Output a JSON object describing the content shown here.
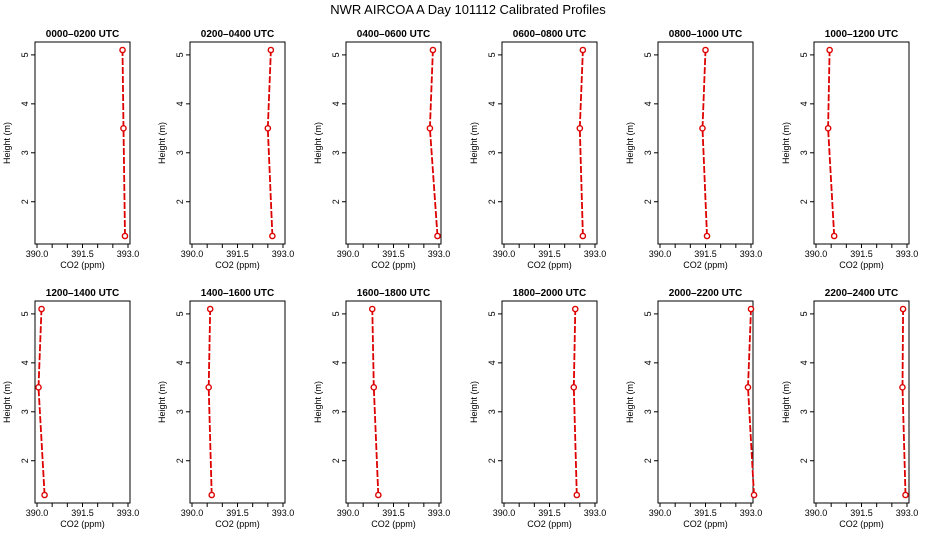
{
  "title": "NWR AIRCOA A  Day 101112  Calibrated Profiles",
  "colors": {
    "series": "#dd0000",
    "frame": "#000000"
  },
  "chart_data": [
    {
      "type": "line",
      "title": "0000–0200 UTC",
      "xlabel": "CO2 (ppm)",
      "ylabel": "Height (m)",
      "xlim": [
        390.0,
        393.0
      ],
      "ylim": [
        1.3,
        5.1
      ],
      "xticks": [
        "390.0",
        "391.5",
        "393.0"
      ],
      "yticks": [
        "2",
        "3",
        "4",
        "5"
      ],
      "x": [
        392.9,
        392.85,
        392.82
      ],
      "y": [
        1.3,
        3.5,
        5.1
      ]
    },
    {
      "type": "line",
      "title": "0200–0400 UTC",
      "xlabel": "CO2 (ppm)",
      "ylabel": "Height (m)",
      "xlim": [
        390.0,
        393.0
      ],
      "ylim": [
        1.3,
        5.1
      ],
      "xticks": [
        "390.0",
        "391.5",
        "393.0"
      ],
      "yticks": [
        "2",
        "3",
        "4",
        "5"
      ],
      "x": [
        392.65,
        392.5,
        392.6
      ],
      "y": [
        1.3,
        3.5,
        5.1
      ]
    },
    {
      "type": "line",
      "title": "0400–0600 UTC",
      "xlabel": "CO2 (ppm)",
      "ylabel": "Height (m)",
      "xlim": [
        390.0,
        393.0
      ],
      "ylim": [
        1.3,
        5.1
      ],
      "xticks": [
        "390.0",
        "391.5",
        "393.0"
      ],
      "yticks": [
        "2",
        "3",
        "4",
        "5"
      ],
      "x": [
        392.95,
        392.7,
        392.8
      ],
      "y": [
        1.3,
        3.5,
        5.1
      ]
    },
    {
      "type": "line",
      "title": "0600–0800 UTC",
      "xlabel": "CO2 (ppm)",
      "ylabel": "Height (m)",
      "xlim": [
        390.0,
        393.0
      ],
      "ylim": [
        1.3,
        5.1
      ],
      "xticks": [
        "390.0",
        "391.5",
        "393.0"
      ],
      "yticks": [
        "2",
        "3",
        "4",
        "5"
      ],
      "x": [
        392.6,
        392.5,
        392.6
      ],
      "y": [
        1.3,
        3.5,
        5.1
      ]
    },
    {
      "type": "line",
      "title": "0800–1000 UTC",
      "xlabel": "CO2 (ppm)",
      "ylabel": "Height (m)",
      "xlim": [
        390.0,
        393.0
      ],
      "ylim": [
        1.3,
        5.1
      ],
      "xticks": [
        "390.0",
        "391.5",
        "393.0"
      ],
      "yticks": [
        "2",
        "3",
        "4",
        "5"
      ],
      "x": [
        391.55,
        391.4,
        391.5
      ],
      "y": [
        1.3,
        3.5,
        5.1
      ]
    },
    {
      "type": "line",
      "title": "1000–1200 UTC",
      "xlabel": "CO2 (ppm)",
      "ylabel": "Height (m)",
      "xlim": [
        390.0,
        393.0
      ],
      "ylim": [
        1.3,
        5.1
      ],
      "xticks": [
        "390.0",
        "391.5",
        "393.0"
      ],
      "yticks": [
        "2",
        "3",
        "4",
        "5"
      ],
      "x": [
        390.6,
        390.4,
        390.45
      ],
      "y": [
        1.3,
        3.5,
        5.1
      ]
    },
    {
      "type": "line",
      "title": "1200–1400 UTC",
      "xlabel": "CO2 (ppm)",
      "ylabel": "Height (m)",
      "xlim": [
        390.0,
        393.0
      ],
      "ylim": [
        1.3,
        5.1
      ],
      "xticks": [
        "390.0",
        "391.5",
        "393.0"
      ],
      "yticks": [
        "2",
        "3",
        "4",
        "5"
      ],
      "x": [
        390.25,
        390.05,
        390.15
      ],
      "y": [
        1.3,
        3.5,
        5.1
      ]
    },
    {
      "type": "line",
      "title": "1400–1600 UTC",
      "xlabel": "CO2 (ppm)",
      "ylabel": "Height (m)",
      "xlim": [
        390.0,
        393.0
      ],
      "ylim": [
        1.3,
        5.1
      ],
      "xticks": [
        "390.0",
        "391.5",
        "393.0"
      ],
      "yticks": [
        "2",
        "3",
        "4",
        "5"
      ],
      "x": [
        390.65,
        390.55,
        390.6
      ],
      "y": [
        1.3,
        3.5,
        5.1
      ]
    },
    {
      "type": "line",
      "title": "1600–1800 UTC",
      "xlabel": "CO2 (ppm)",
      "ylabel": "Height (m)",
      "xlim": [
        390.0,
        393.0
      ],
      "ylim": [
        1.3,
        5.1
      ],
      "xticks": [
        "390.0",
        "391.5",
        "393.0"
      ],
      "yticks": [
        "2",
        "3",
        "4",
        "5"
      ],
      "x": [
        391.0,
        390.85,
        390.8
      ],
      "y": [
        1.3,
        3.5,
        5.1
      ]
    },
    {
      "type": "line",
      "title": "1800–2000 UTC",
      "xlabel": "CO2 (ppm)",
      "ylabel": "Height (m)",
      "xlim": [
        390.0,
        393.0
      ],
      "ylim": [
        1.3,
        5.1
      ],
      "xticks": [
        "390.0",
        "391.5",
        "393.0"
      ],
      "yticks": [
        "2",
        "3",
        "4",
        "5"
      ],
      "x": [
        392.4,
        392.3,
        392.35
      ],
      "y": [
        1.3,
        3.5,
        5.1
      ]
    },
    {
      "type": "line",
      "title": "2000–2200 UTC",
      "xlabel": "CO2 (ppm)",
      "ylabel": "Height (m)",
      "xlim": [
        390.0,
        393.0
      ],
      "ylim": [
        1.3,
        5.1
      ],
      "xticks": [
        "390.0",
        "391.5",
        "393.0"
      ],
      "yticks": [
        "2",
        "3",
        "4",
        "5"
      ],
      "x": [
        393.1,
        392.9,
        393.0
      ],
      "y": [
        1.3,
        3.5,
        5.1
      ]
    },
    {
      "type": "line",
      "title": "2200–2400 UTC",
      "xlabel": "CO2 (ppm)",
      "ylabel": "Height (m)",
      "xlim": [
        390.0,
        393.0
      ],
      "ylim": [
        1.3,
        5.1
      ],
      "xticks": [
        "390.0",
        "391.5",
        "393.0"
      ],
      "yticks": [
        "2",
        "3",
        "4",
        "5"
      ],
      "x": [
        392.95,
        392.85,
        392.87
      ],
      "y": [
        1.3,
        3.5,
        5.1
      ]
    }
  ]
}
